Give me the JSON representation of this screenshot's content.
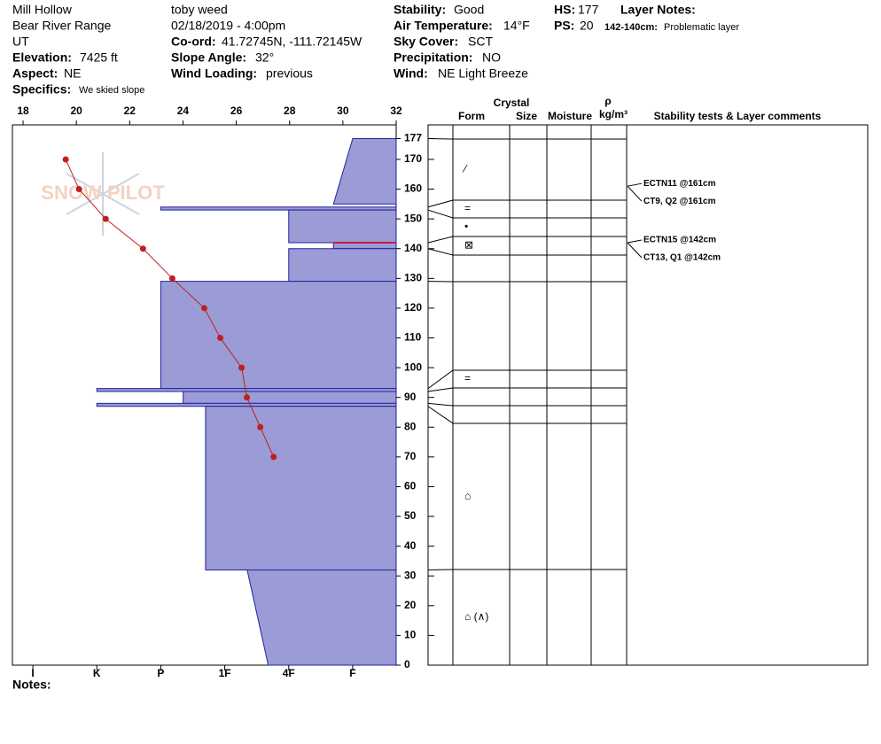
{
  "header": {
    "location": "Mill Hollow",
    "range": "Bear River Range",
    "state": "UT",
    "elevation": {
      "label": "Elevation:",
      "value": "7425 ft"
    },
    "aspect": {
      "label": "Aspect:",
      "value": "NE"
    },
    "specifics": {
      "label": "Specifics:",
      "value": "We skied slope"
    },
    "observer": "toby weed",
    "date": "02/18/2019 - 4:00pm",
    "coord": {
      "label": "Co-ord:",
      "value": "41.72745N, -111.72145W"
    },
    "slope": {
      "label": "Slope Angle:",
      "value": "32°"
    },
    "wind_loading": {
      "label": "Wind Loading:",
      "value": "previous"
    },
    "stability": {
      "label": "Stability:",
      "value": "Good"
    },
    "air_temp": {
      "label": "Air Temperature:",
      "value": "14°F"
    },
    "sky": {
      "label": "Sky Cover:",
      "value": "SCT"
    },
    "precip": {
      "label": "Precipitation:",
      "value": "NO"
    },
    "wind": {
      "label": "Wind:",
      "value": "NE Light Breeze"
    },
    "hs": {
      "label": "HS:",
      "value": "177"
    },
    "ps": {
      "label": "PS:",
      "value": "20"
    },
    "layer_notes": {
      "label": "Layer Notes:",
      "range": "142-140cm:",
      "note": "Problematic layer"
    }
  },
  "logo": "SNOW PILOT",
  "notes": "Notes:",
  "table_header": {
    "crystal": "Crystal",
    "form": "Form",
    "size": "Size",
    "moisture": "Moisture",
    "rho": "ρ",
    "density": "kg/m³",
    "tests": "Stability tests & Layer comments"
  },
  "chart_data": [
    {
      "type": "line",
      "color": "#c0201c",
      "values": [
        19.6,
        20.1,
        21.1,
        22.5,
        23.6,
        24.8,
        25.4,
        26.2,
        26.4,
        26.9,
        27.4
      ],
      "depths": [
        170,
        160,
        150,
        140,
        130,
        120,
        110,
        100,
        90,
        80,
        70
      ],
      "xlim": [
        17.6,
        32
      ],
      "xticks": [
        18,
        20,
        22,
        24,
        26,
        28,
        30,
        32
      ],
      "ylim": [
        0,
        181.6
      ],
      "yticks": [
        0,
        10,
        20,
        30,
        40,
        50,
        60,
        70,
        80,
        90,
        100,
        110,
        120,
        130,
        140,
        150,
        160,
        170,
        177
      ]
    },
    {
      "type": "hardness",
      "color": "#9b9bd6",
      "problem_color": "#c02040",
      "xlim": [
        6.32,
        0.32
      ],
      "xticks": [
        {
          "value": 6,
          "label": "I"
        },
        {
          "value": 5,
          "label": "K"
        },
        {
          "value": 4,
          "label": "P"
        },
        {
          "value": 3,
          "label": "1F"
        },
        {
          "value": 2,
          "label": "4F"
        },
        {
          "value": 1,
          "label": "F"
        }
      ],
      "layers": [
        {
          "top": 177,
          "bottom": 155,
          "hardness_top": 1,
          "hardness_bottom": 1.3,
          "form": "⁄"
        },
        {
          "top": 154,
          "bottom": 153,
          "hardness_top": 4,
          "hardness_bottom": 4,
          "form": "="
        },
        {
          "top": 153,
          "bottom": 142,
          "hardness_top": 2,
          "hardness_bottom": 2,
          "form": "•"
        },
        {
          "top": 142,
          "bottom": 140,
          "hardness_top": 1.3,
          "hardness_bottom": 1.3,
          "form": "⊠",
          "problem": true
        },
        {
          "top": 140,
          "bottom": 129,
          "hardness_top": 2,
          "hardness_bottom": 2
        },
        {
          "top": 129,
          "bottom": 93,
          "hardness_top": 4,
          "hardness_bottom": 4
        },
        {
          "top": 93,
          "bottom": 92,
          "hardness_top": 5,
          "hardness_bottom": 5,
          "form": "="
        },
        {
          "top": 92,
          "bottom": 88,
          "hardness_top": 3.65,
          "hardness_bottom": 3.65
        },
        {
          "top": 88,
          "bottom": 87,
          "hardness_top": 5,
          "hardness_bottom": 5
        },
        {
          "top": 87,
          "bottom": 32,
          "hardness_top": 3.3,
          "hardness_bottom": 3.3,
          "form": "⌂"
        },
        {
          "top": 32,
          "bottom": 0,
          "hardness_top": 2.65,
          "hardness_bottom": 2.32,
          "form": "⌂ (∧)"
        }
      ],
      "stability_tests": [
        {
          "depth": 161,
          "label": "ECTN11 @161cm"
        },
        {
          "depth": 161,
          "label": "CT9, Q2 @161cm"
        },
        {
          "depth": 142,
          "label": "ECTN15 @142cm"
        },
        {
          "depth": 142,
          "label": "CT13, Q1 @142cm"
        }
      ]
    }
  ]
}
